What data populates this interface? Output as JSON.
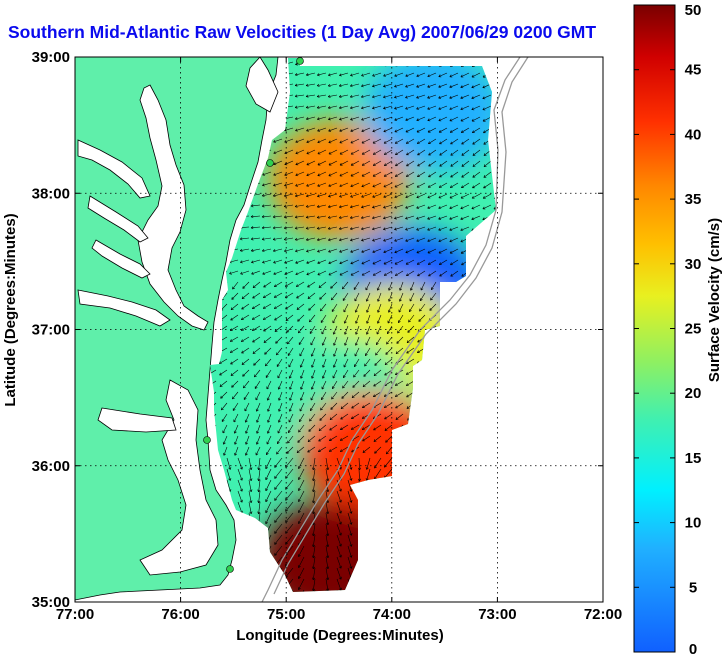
{
  "title": "Southern Mid-Atlantic Raw Velocities (1 Day Avg) 2007/06/29 0200 GMT",
  "chart_data": {
    "type": "heatmap",
    "title": "Southern Mid-Atlantic Raw Velocities (1 Day Avg) 2007/06/29 0200 GMT",
    "xlabel": "Longitude (Degrees:Minutes)",
    "ylabel": "Latitude (Degrees:Minutes)",
    "xticks": [
      "77:00",
      "76:00",
      "75:00",
      "74:00",
      "73:00",
      "72:00"
    ],
    "yticks": [
      "39:00",
      "38:00",
      "37:00",
      "36:00",
      "35:00"
    ],
    "xlim": [
      -77,
      -72
    ],
    "ylim": [
      35,
      39
    ],
    "grid": true,
    "colorbar": {
      "label": "Surface Velocity (cm/s)",
      "ticks": [
        "50",
        "45",
        "40",
        "35",
        "30",
        "25",
        "20",
        "15",
        "10",
        "5",
        "0"
      ],
      "range": [
        0,
        50
      ]
    },
    "land_color": "#5fefaa",
    "regions": [
      {
        "lon": -74.5,
        "lat": 38.1,
        "speed": 40
      },
      {
        "lon": -73.6,
        "lat": 38.6,
        "speed": 10
      },
      {
        "lon": -73.8,
        "lat": 37.3,
        "speed": 5
      },
      {
        "lon": -74.0,
        "lat": 36.9,
        "speed": 30
      },
      {
        "lon": -74.5,
        "lat": 36.5,
        "speed": 22
      },
      {
        "lon": -74.2,
        "lat": 36.1,
        "speed": 45
      },
      {
        "lon": -74.6,
        "lat": 35.3,
        "speed": 50
      }
    ]
  }
}
